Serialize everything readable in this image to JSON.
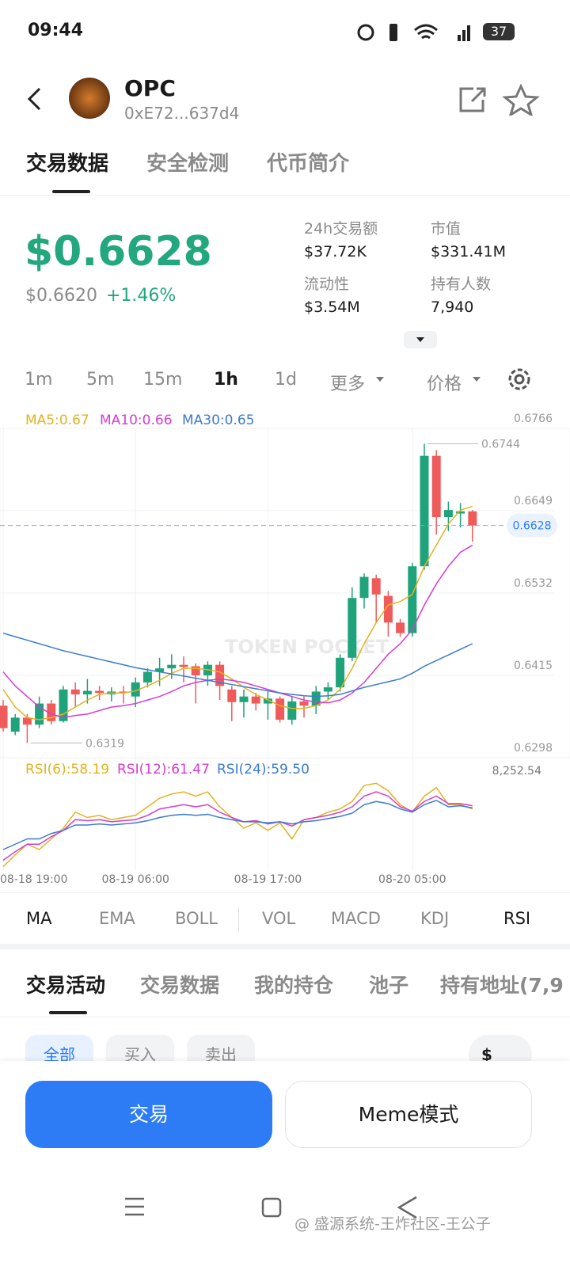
{
  "status_bar": {
    "time": "09:44",
    "battery": "37"
  },
  "header": {
    "symbol": "OPC",
    "address": "0xE72...637d4"
  },
  "tabs": [
    "交易数据",
    "安全检测",
    "代币简介"
  ],
  "price": {
    "current": "$0.6628",
    "reference": "$0.6620",
    "change": "+1.46%"
  },
  "stats": [
    {
      "label": "24h交易额",
      "value": "$37.72K"
    },
    {
      "label": "市值",
      "value": "$331.41M"
    },
    {
      "label": "流动性",
      "value": "$3.54M"
    },
    {
      "label": "持有人数",
      "value": "7,940"
    }
  ],
  "intervals": [
    "1m",
    "5m",
    "15m",
    "1h",
    "1d",
    "更多",
    "价格"
  ],
  "chart_data": [
    {
      "type": "candlestick",
      "watermark": "TOKEN POCKET",
      "up_color": "#1fa37a",
      "down_color": "#ef5b5b",
      "categories": [
        "08-18 19:00",
        null,
        null,
        null,
        null,
        null,
        null,
        null,
        null,
        null,
        null,
        "08-19 06:00",
        null,
        null,
        null,
        null,
        null,
        null,
        null,
        null,
        null,
        null,
        "08-19 17:00",
        null,
        null,
        null,
        null,
        null,
        null,
        null,
        null,
        null,
        null,
        null,
        "08-20 05:00",
        null,
        null,
        null,
        null,
        null
      ],
      "open": [
        0.6372,
        0.6335,
        0.6355,
        0.6345,
        0.6375,
        0.635,
        0.6395,
        0.6388,
        0.6393,
        0.6388,
        0.6392,
        0.6385,
        0.6405,
        0.642,
        0.6425,
        0.643,
        0.6428,
        0.6415,
        0.643,
        0.6395,
        0.6377,
        0.6385,
        0.6375,
        0.6382,
        0.6352,
        0.6378,
        0.6372,
        0.6392,
        0.6398,
        0.644,
        0.6525,
        0.6553,
        0.6528,
        0.649,
        0.6475,
        0.657,
        0.6727,
        0.664,
        0.6645,
        0.6648
      ],
      "high": [
        0.638,
        0.636,
        0.636,
        0.6385,
        0.638,
        0.64,
        0.6405,
        0.641,
        0.64,
        0.6398,
        0.64,
        0.6412,
        0.6425,
        0.644,
        0.6445,
        0.6442,
        0.6432,
        0.6435,
        0.6435,
        0.64,
        0.6395,
        0.639,
        0.6392,
        0.6385,
        0.6385,
        0.6385,
        0.64,
        0.6405,
        0.6445,
        0.654,
        0.656,
        0.6558,
        0.6535,
        0.6495,
        0.6575,
        0.6744,
        0.6735,
        0.6662,
        0.666,
        0.665
      ],
      "low": [
        0.6335,
        0.633,
        0.6319,
        0.634,
        0.6345,
        0.6348,
        0.637,
        0.6375,
        0.638,
        0.6378,
        0.6375,
        0.637,
        0.6398,
        0.64,
        0.641,
        0.6405,
        0.6375,
        0.64,
        0.638,
        0.635,
        0.6355,
        0.6365,
        0.6352,
        0.6348,
        0.6345,
        0.6355,
        0.636,
        0.638,
        0.6392,
        0.6435,
        0.651,
        0.649,
        0.647,
        0.647,
        0.647,
        0.6565,
        0.6615,
        0.662,
        0.6625,
        0.6605
      ],
      "close": [
        0.634,
        0.6355,
        0.6345,
        0.6375,
        0.635,
        0.6395,
        0.6388,
        0.6393,
        0.639,
        0.6392,
        0.639,
        0.6405,
        0.642,
        0.6425,
        0.643,
        0.6427,
        0.6415,
        0.643,
        0.64,
        0.6377,
        0.6385,
        0.6375,
        0.6382,
        0.6352,
        0.6378,
        0.6372,
        0.6392,
        0.6398,
        0.644,
        0.6525,
        0.6555,
        0.653,
        0.649,
        0.6475,
        0.657,
        0.6727,
        0.664,
        0.665,
        0.6648,
        0.6628
      ],
      "series": [
        {
          "name": "MA5:0.67",
          "color": "#e3b21f",
          "values": [
            0.6395,
            0.637,
            0.6355,
            0.6352,
            0.6355,
            0.636,
            0.637,
            0.638,
            0.6388,
            0.639,
            0.639,
            0.6393,
            0.64,
            0.6408,
            0.6418,
            0.6425,
            0.6425,
            0.6423,
            0.642,
            0.641,
            0.6398,
            0.6388,
            0.638,
            0.6372,
            0.6368,
            0.6368,
            0.6372,
            0.638,
            0.6395,
            0.6425,
            0.646,
            0.649,
            0.6515,
            0.652,
            0.653,
            0.657,
            0.66,
            0.663,
            0.665,
            0.6655
          ]
        },
        {
          "name": "MA10:0.66",
          "color": "#d63ccf",
          "values": [
            0.642,
            0.64,
            0.6385,
            0.637,
            0.636,
            0.6355,
            0.6358,
            0.636,
            0.6365,
            0.637,
            0.6372,
            0.6375,
            0.638,
            0.6385,
            0.6392,
            0.64,
            0.6405,
            0.6408,
            0.641,
            0.6408,
            0.6405,
            0.64,
            0.6395,
            0.639,
            0.6385,
            0.638,
            0.6377,
            0.6376,
            0.638,
            0.639,
            0.6405,
            0.6425,
            0.6445,
            0.646,
            0.648,
            0.6515,
            0.6545,
            0.657,
            0.659,
            0.66
          ]
        },
        {
          "name": "MA30:0.65",
          "color": "#3b7bd0",
          "values": [
            0.6475,
            0.647,
            0.6465,
            0.646,
            0.6455,
            0.645,
            0.6446,
            0.6442,
            0.6438,
            0.6434,
            0.643,
            0.6426,
            0.6423,
            0.642,
            0.6417,
            0.6414,
            0.6411,
            0.6408,
            0.6405,
            0.6402,
            0.6399,
            0.6396,
            0.6393,
            0.639,
            0.6388,
            0.6386,
            0.6385,
            0.6386,
            0.6388,
            0.6393,
            0.6398,
            0.6402,
            0.6406,
            0.641,
            0.6418,
            0.6428,
            0.6436,
            0.6444,
            0.6452,
            0.646
          ]
        }
      ],
      "ylim": [
        0.6298,
        0.6766
      ],
      "yticks": [
        0.6298,
        0.6415,
        0.6532,
        0.6649,
        0.6766
      ],
      "high_label": 0.6744,
      "low_label": 0.6319,
      "last_price": 0.6628
    },
    {
      "type": "line",
      "corner_label": "8,252.54",
      "ylim": [
        0,
        100
      ],
      "series": [
        {
          "name": "RSI(6):58.19",
          "color": "#e3b21f",
          "values": [
            4,
            15,
            25,
            20,
            30,
            40,
            55,
            50,
            52,
            48,
            50,
            52,
            60,
            68,
            72,
            74,
            70,
            74,
            60,
            50,
            40,
            45,
            38,
            45,
            30,
            48,
            50,
            55,
            58,
            65,
            80,
            82,
            75,
            62,
            55,
            70,
            78,
            62,
            62,
            58
          ]
        },
        {
          "name": "RSI(12):61.47",
          "color": "#d63ccf",
          "values": [
            10,
            18,
            25,
            25,
            32,
            38,
            48,
            47,
            48,
            46,
            47,
            48,
            52,
            58,
            60,
            62,
            60,
            62,
            55,
            50,
            46,
            47,
            44,
            46,
            42,
            48,
            50,
            52,
            55,
            60,
            70,
            74,
            70,
            60,
            56,
            65,
            70,
            63,
            63,
            61
          ]
        },
        {
          "name": "RSI(24):59.50",
          "color": "#3b7bd0",
          "values": [
            20,
            25,
            30,
            30,
            35,
            38,
            43,
            43,
            44,
            43,
            44,
            45,
            47,
            50,
            52,
            53,
            52,
            53,
            50,
            48,
            46,
            46,
            45,
            46,
            44,
            46,
            47,
            49,
            51,
            54,
            62,
            65,
            63,
            58,
            55,
            62,
            66,
            60,
            61,
            59
          ]
        }
      ]
    }
  ],
  "indicators": [
    "MA",
    "EMA",
    "BOLL",
    "VOL",
    "MACD",
    "KDJ",
    "RSI"
  ],
  "activity_tabs": [
    "交易活动",
    "交易数据",
    "我的持仓",
    "池子",
    "持有地址(7,9"
  ],
  "filters": [
    "全部",
    "买入",
    "卖出"
  ],
  "filter_icon": "$",
  "buttons": [
    "交易",
    "Meme模式"
  ],
  "footer_watermark": "@ 盛源系统-王炸社区-王公子"
}
